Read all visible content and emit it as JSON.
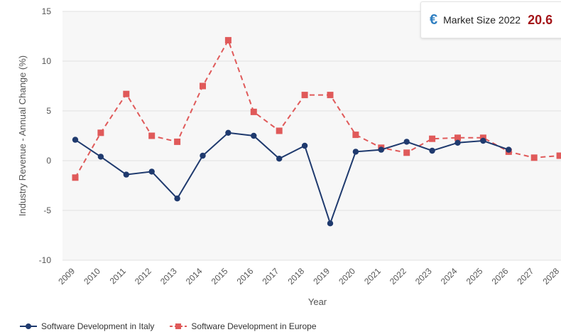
{
  "chart_data": {
    "type": "line",
    "title": "",
    "xlabel": "Year",
    "ylabel": "Industry Revenue - Annual Change (%)",
    "ylim": [
      -10,
      15
    ],
    "yticks": [
      -10,
      -5,
      0,
      5,
      10,
      15
    ],
    "grid": true,
    "legend_position": "bottom-left",
    "categories": [
      "2009",
      "2010",
      "2011",
      "2012",
      "2013",
      "2014",
      "2015",
      "2016",
      "2017",
      "2018",
      "2019",
      "2020",
      "2021",
      "2022",
      "2023",
      "2024",
      "2025",
      "2026",
      "2027",
      "2028"
    ],
    "series": [
      {
        "name": "Software Development in Italy",
        "color": "#1f3a6e",
        "style": "solid",
        "marker": "circle",
        "values": [
          2.1,
          0.4,
          -1.4,
          -1.1,
          -3.8,
          0.5,
          2.8,
          2.5,
          0.2,
          1.5,
          -6.3,
          0.9,
          1.1,
          1.9,
          1.0,
          1.8,
          2.0,
          1.1,
          null,
          null
        ]
      },
      {
        "name": "Software Development in Europe",
        "color": "#e05a5a",
        "style": "dashed",
        "marker": "square",
        "values": [
          -1.7,
          2.8,
          6.7,
          2.5,
          1.9,
          7.5,
          12.1,
          4.9,
          3.0,
          6.6,
          6.6,
          2.6,
          1.3,
          0.8,
          2.2,
          2.3,
          2.3,
          0.9,
          0.3,
          0.5
        ]
      }
    ]
  },
  "market": {
    "icon": "euro-icon",
    "symbol": "€",
    "label": "Market Size 2022",
    "value": "20.6"
  }
}
